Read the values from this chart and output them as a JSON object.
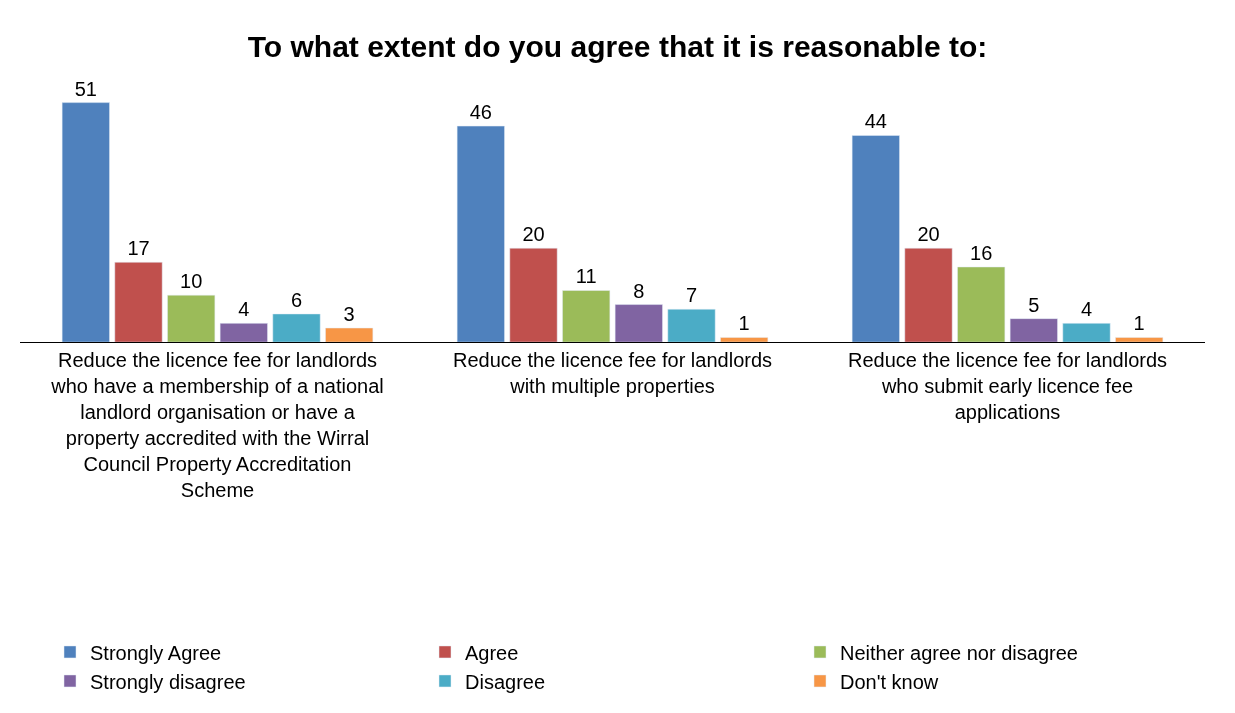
{
  "chart_data": {
    "type": "bar",
    "title": "To what extent do you agree that it is reasonable to:",
    "categories": [
      "Reduce the licence fee for landlords who have a membership of a national landlord organisation or have a property accredited with the Wirral Council Property Accreditation Scheme",
      "Reduce the licence fee for landlords with multiple properties",
      "Reduce the licence fee for landlords who submit early licence fee applications"
    ],
    "series": [
      {
        "name": "Strongly Agree",
        "color": "#4f81bd",
        "values": [
          51,
          46,
          44
        ]
      },
      {
        "name": "Agree",
        "color": "#c0504d",
        "values": [
          17,
          20,
          20
        ]
      },
      {
        "name": "Neither agree nor disagree",
        "color": "#9bbb59",
        "values": [
          10,
          11,
          16
        ]
      },
      {
        "name": "Strongly disagree",
        "color": "#8064a2",
        "values": [
          4,
          8,
          5
        ]
      },
      {
        "name": "Disagree",
        "color": "#4bacc6",
        "values": [
          6,
          7,
          4
        ]
      },
      {
        "name": "Don't know",
        "color": "#f79646",
        "values": [
          3,
          1,
          1
        ]
      }
    ],
    "data_labels": true,
    "legend": "bottom",
    "tick_labels": "x"
  }
}
